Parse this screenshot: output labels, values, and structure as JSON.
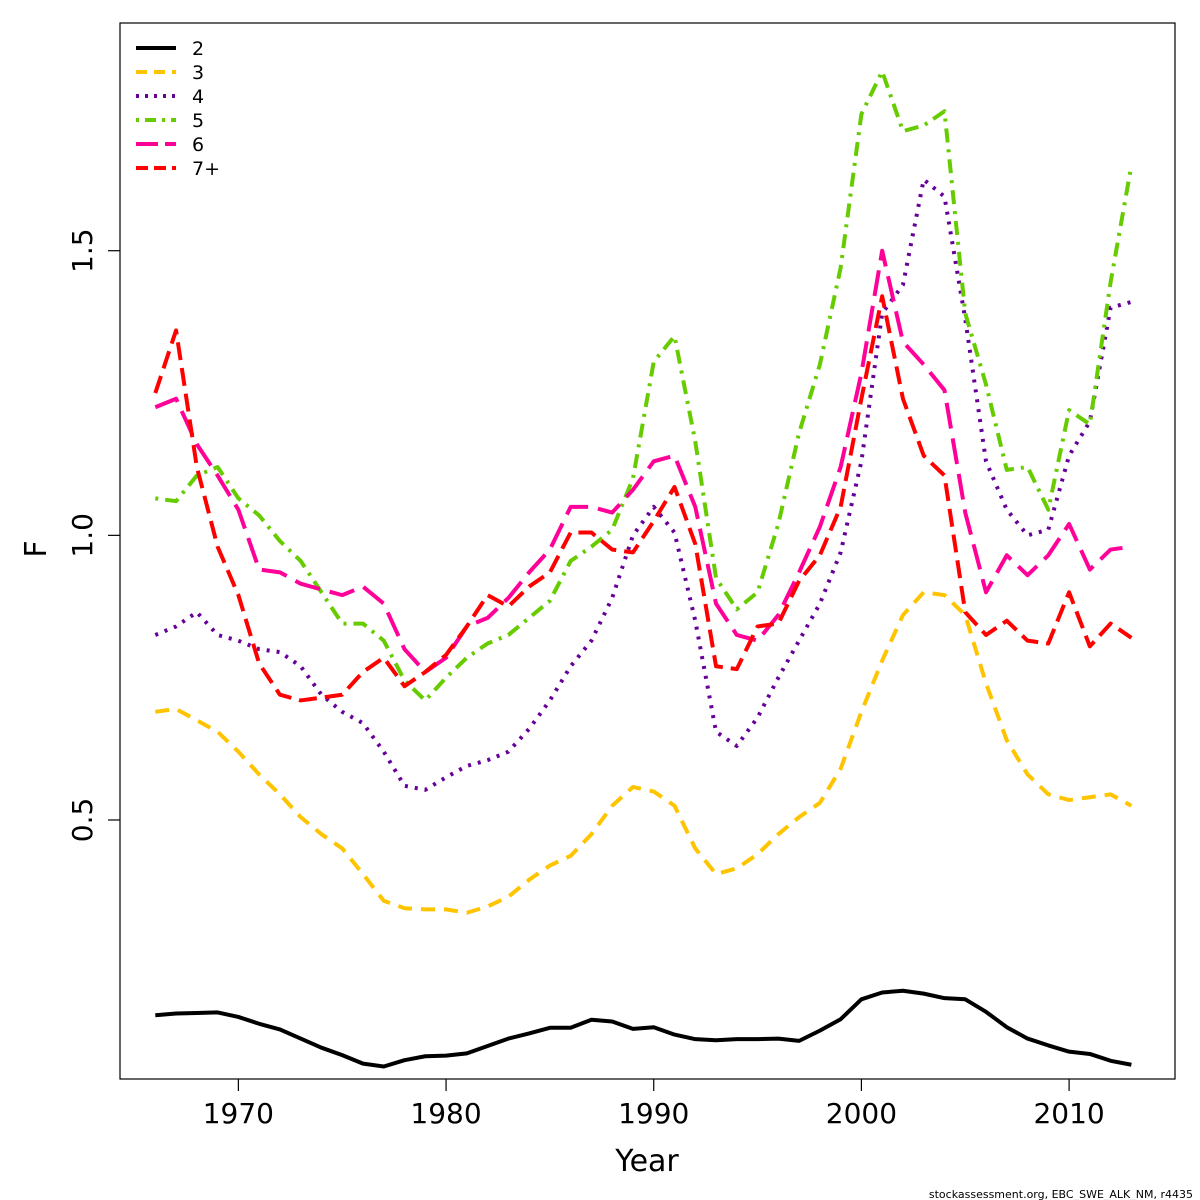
{
  "chart_data": {
    "type": "line",
    "xlabel": "Year",
    "ylabel": "F",
    "xlim": [
      1964.3,
      2015.1
    ],
    "ylim": [
      0.045,
      1.9
    ],
    "x_ticks": [
      1970,
      1980,
      1990,
      2000,
      2010
    ],
    "y_ticks": [
      0.5,
      1.0,
      1.5
    ],
    "y_tick_labels": [
      "0.5",
      "1.0",
      "1.5"
    ],
    "legend_position": "top-left",
    "grid": false,
    "x": [
      1966,
      1967,
      1968,
      1969,
      1970,
      1971,
      1972,
      1973,
      1974,
      1975,
      1976,
      1977,
      1978,
      1979,
      1980,
      1981,
      1982,
      1983,
      1984,
      1985,
      1986,
      1987,
      1988,
      1989,
      1990,
      1991,
      1992,
      1993,
      1994,
      1995,
      1996,
      1997,
      1998,
      1999,
      2000,
      2001,
      2002,
      2003,
      2004,
      2005,
      2006,
      2007,
      2008,
      2009,
      2010,
      2011,
      2012,
      2013
    ],
    "series": [
      {
        "name": "2",
        "color": "#000000",
        "dash": "solid",
        "values": [
          0.157,
          0.16,
          0.161,
          0.162,
          0.154,
          0.142,
          0.132,
          0.116,
          0.1,
          0.087,
          0.072,
          0.067,
          0.078,
          0.085,
          0.086,
          0.09,
          0.103,
          0.116,
          0.125,
          0.135,
          0.135,
          0.149,
          0.146,
          0.133,
          0.136,
          0.123,
          0.115,
          0.113,
          0.115,
          0.115,
          0.116,
          0.112,
          0.13,
          0.15,
          0.185,
          0.197,
          0.2,
          0.195,
          0.187,
          0.185,
          0.163,
          0.136,
          0.116,
          0.104,
          0.093,
          0.089,
          0.077,
          0.07
        ]
      },
      {
        "name": "3",
        "color": "#FFC400",
        "dash": "dashed",
        "values": [
          0.69,
          0.695,
          0.675,
          0.655,
          0.62,
          0.58,
          0.545,
          0.505,
          0.475,
          0.45,
          0.405,
          0.358,
          0.345,
          0.343,
          0.343,
          0.337,
          0.348,
          0.365,
          0.395,
          0.42,
          0.437,
          0.475,
          0.525,
          0.558,
          0.55,
          0.525,
          0.45,
          0.405,
          0.415,
          0.44,
          0.475,
          0.505,
          0.53,
          0.59,
          0.69,
          0.78,
          0.86,
          0.9,
          0.895,
          0.86,
          0.74,
          0.64,
          0.58,
          0.545,
          0.535,
          0.54,
          0.545,
          0.525
        ]
      },
      {
        "name": "4",
        "color": "#660099",
        "dash": "dotted",
        "values": [
          0.825,
          0.84,
          0.865,
          0.825,
          0.815,
          0.8,
          0.795,
          0.77,
          0.72,
          0.69,
          0.67,
          0.62,
          0.56,
          0.553,
          0.575,
          0.595,
          0.605,
          0.62,
          0.66,
          0.71,
          0.77,
          0.815,
          0.89,
          1.0,
          1.05,
          1.005,
          0.85,
          0.655,
          0.63,
          0.68,
          0.75,
          0.815,
          0.88,
          0.97,
          1.13,
          1.39,
          1.44,
          1.625,
          1.595,
          1.38,
          1.13,
          1.045,
          1.0,
          1.01,
          1.14,
          1.2,
          1.4,
          1.41
        ]
      },
      {
        "name": "5",
        "color": "#66CC00",
        "dash": "dashdot",
        "values": [
          1.065,
          1.06,
          1.105,
          1.12,
          1.065,
          1.035,
          0.99,
          0.955,
          0.9,
          0.845,
          0.845,
          0.815,
          0.745,
          0.71,
          0.75,
          0.785,
          0.81,
          0.825,
          0.855,
          0.885,
          0.955,
          0.98,
          1.01,
          1.1,
          1.305,
          1.35,
          1.165,
          0.925,
          0.87,
          0.9,
          1.02,
          1.18,
          1.3,
          1.47,
          1.74,
          1.815,
          1.71,
          1.72,
          1.745,
          1.39,
          1.265,
          1.115,
          1.12,
          1.045,
          1.22,
          1.195,
          1.445,
          1.65
        ]
      },
      {
        "name": "6",
        "color": "#FF0099",
        "dash": "longdash",
        "values": [
          1.225,
          1.24,
          1.16,
          1.105,
          1.045,
          0.94,
          0.935,
          0.915,
          0.905,
          0.895,
          0.91,
          0.88,
          0.8,
          0.76,
          0.785,
          0.84,
          0.855,
          0.89,
          0.935,
          0.975,
          1.05,
          1.05,
          1.04,
          1.08,
          1.13,
          1.14,
          1.05,
          0.88,
          0.825,
          0.815,
          0.86,
          0.935,
          1.015,
          1.12,
          1.285,
          1.5,
          1.34,
          1.3,
          1.255,
          1.04,
          0.9,
          0.965,
          0.93,
          0.965,
          1.02,
          0.94,
          0.975,
          0.98
        ]
      },
      {
        "name": "7+",
        "color": "#FF0000",
        "dash": "dashed2",
        "values": [
          1.25,
          1.36,
          1.12,
          0.98,
          0.895,
          0.775,
          0.72,
          0.71,
          0.715,
          0.72,
          0.76,
          0.785,
          0.735,
          0.76,
          0.79,
          0.84,
          0.895,
          0.875,
          0.91,
          0.935,
          1.005,
          1.005,
          0.975,
          0.97,
          1.025,
          1.085,
          0.985,
          0.77,
          0.765,
          0.84,
          0.845,
          0.92,
          0.965,
          1.05,
          1.24,
          1.42,
          1.24,
          1.14,
          1.105,
          0.865,
          0.825,
          0.85,
          0.815,
          0.81,
          0.9,
          0.805,
          0.845,
          0.82
        ]
      }
    ]
  },
  "footer_text": "stockassessment.org, EBC_SWE_ALK_NM, r4435"
}
